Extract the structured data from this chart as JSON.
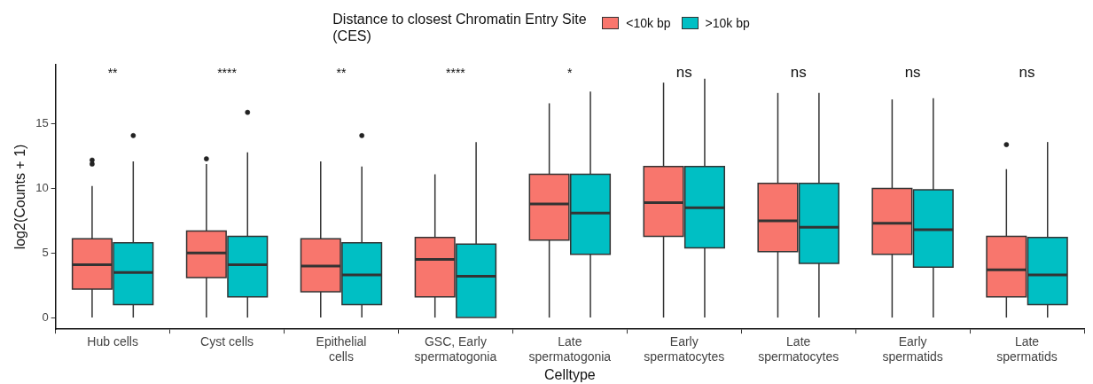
{
  "chart_data": {
    "type": "box",
    "xlabel": "Celltype",
    "ylabel": "log2(Counts + 1)",
    "legend_title": "Distance to closest Chromatin Entry Site (CES)",
    "legend": "top",
    "categories": [
      "Hub cells",
      "Cyst cells",
      "Epithelial\ncells",
      "GSC, Early\nspermatogonia",
      "Late\nspermatogonia",
      "Early\nspermatocytes",
      "Late\nspermatocytes",
      "Early\nspermatids",
      "Late\nspermatids"
    ],
    "ylim": [
      -0.9,
      19.6
    ],
    "yticks": [
      0,
      5,
      10,
      15
    ],
    "grid": false,
    "series": [
      {
        "name": "<10k bp",
        "color": "#f8766d",
        "boxes": [
          {
            "low": 0,
            "q1": 2.2,
            "median": 4.1,
            "q3": 6.1,
            "high": 10.2,
            "outliers": [
              11.9,
              12.2
            ]
          },
          {
            "low": 0,
            "q1": 3.1,
            "median": 5.0,
            "q3": 6.7,
            "high": 11.9,
            "outliers": [
              12.3
            ]
          },
          {
            "low": 0,
            "q1": 2.0,
            "median": 4.0,
            "q3": 6.1,
            "high": 12.1
          },
          {
            "low": 0,
            "q1": 1.6,
            "median": 4.5,
            "q3": 6.2,
            "high": 11.1
          },
          {
            "low": 0,
            "q1": 6.0,
            "median": 8.8,
            "q3": 11.1,
            "high": 16.6
          },
          {
            "low": 0,
            "q1": 6.3,
            "median": 8.9,
            "q3": 11.7,
            "high": 18.2
          },
          {
            "low": 0,
            "q1": 5.1,
            "median": 7.5,
            "q3": 10.4,
            "high": 17.4
          },
          {
            "low": 0,
            "q1": 4.9,
            "median": 7.3,
            "q3": 10.0,
            "high": 16.9
          },
          {
            "low": 0,
            "q1": 1.6,
            "median": 3.7,
            "q3": 6.3,
            "high": 11.5,
            "outliers": [
              13.4
            ]
          }
        ]
      },
      {
        "name": ">10k bp",
        "color": "#00bfc4",
        "boxes": [
          {
            "low": 0,
            "q1": 1.0,
            "median": 3.5,
            "q3": 5.8,
            "high": 12.1,
            "outliers": [
              14.1
            ]
          },
          {
            "low": 0,
            "q1": 1.6,
            "median": 4.1,
            "q3": 6.3,
            "high": 12.8,
            "outliers": [
              15.9
            ]
          },
          {
            "low": 0,
            "q1": 1.0,
            "median": 3.3,
            "q3": 5.8,
            "high": 11.7,
            "outliers": [
              14.1
            ]
          },
          {
            "low": 0,
            "q1": 0,
            "median": 3.2,
            "q3": 5.7,
            "high": 13.6
          },
          {
            "low": 0,
            "q1": 4.9,
            "median": 8.1,
            "q3": 11.1,
            "high": 17.5
          },
          {
            "low": 0,
            "q1": 5.4,
            "median": 8.5,
            "q3": 11.7,
            "high": 18.5
          },
          {
            "low": 0,
            "q1": 4.2,
            "median": 7.0,
            "q3": 10.4,
            "high": 17.4
          },
          {
            "low": 0,
            "q1": 3.9,
            "median": 6.8,
            "q3": 9.9,
            "high": 17.0
          },
          {
            "low": 0,
            "q1": 1.0,
            "median": 3.3,
            "q3": 6.2,
            "high": 13.6
          }
        ]
      }
    ],
    "annotations": [
      "**",
      "****",
      "**",
      "****",
      "*",
      "ns",
      "ns",
      "ns",
      "ns"
    ]
  }
}
